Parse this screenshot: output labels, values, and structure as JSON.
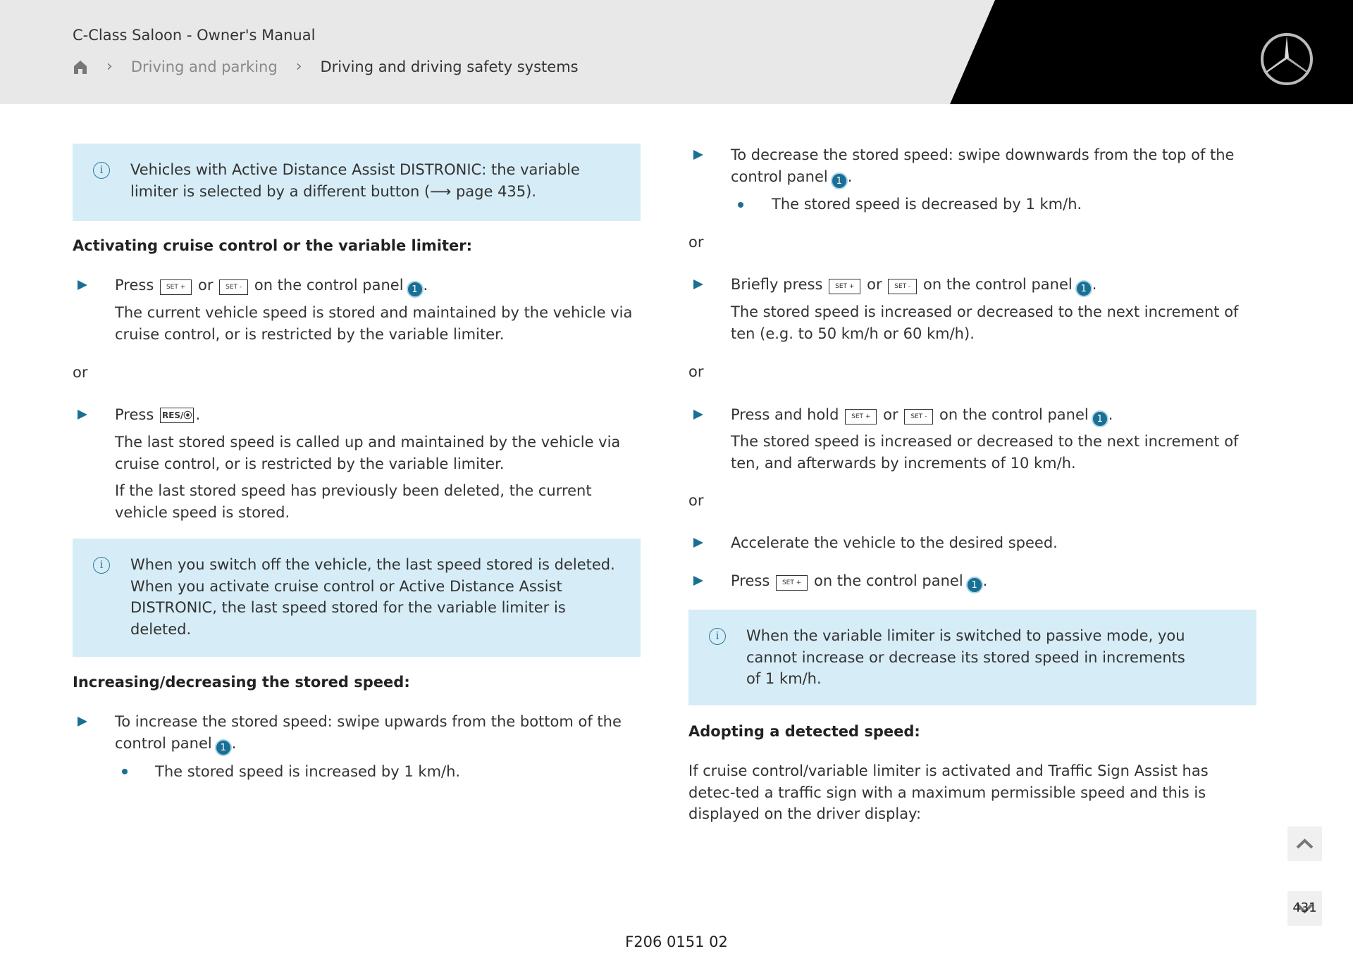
{
  "header": {
    "title": "C-Class Saloon - Owner's Manual",
    "breadcrumb": [
      "Driving and parking",
      "Driving and driving safety systems"
    ],
    "home_icon": "home-icon",
    "logo": "Mercedes-Benz star"
  },
  "left": {
    "info1": "Vehicles with Active Distance Assist DISTRONIC: the variable limiter is selected by a different button (⟶ page 435).",
    "heading1": "Activating cruise control or the variable limiter:",
    "step1": {
      "press": "Press",
      "or": "or",
      "suffix": "on the control panel",
      "result": "The current vehicle speed is stored and maintained by the vehicle via cruise control, or is restricted by the variable limiter."
    },
    "or1": "or",
    "step2": {
      "press": "Press",
      "key": "RES/⦿",
      "result1": "The last stored speed is called up and maintained by the vehicle via cruise control, or is restricted by the variable limiter.",
      "result2": "If the last stored speed has previously been deleted, the current vehicle speed is stored."
    },
    "info2": "When you switch off the vehicle, the last speed stored is deleted. When you activate cruise control or Active Distance Assist DISTRONIC, the last speed stored for the variable limiter is deleted.",
    "heading2": "Increasing/decreasing the stored speed:",
    "step3": {
      "text": "To increase the stored speed: swipe upwards from the bottom of the control panel",
      "sub": "The stored speed is increased by 1 km/h."
    }
  },
  "keys": {
    "set_plus": "SET +",
    "set_minus": "SET -",
    "num": "1"
  },
  "right": {
    "step1": {
      "text": "To decrease the stored speed: swipe downwards from the top of the control panel",
      "sub": "The stored speed is decreased by 1 km/h."
    },
    "or1": "or",
    "step2": {
      "press": "Briefly press",
      "or": "or",
      "suffix": "on the control panel",
      "result": "The stored speed is increased or decreased to the next increment of ten (e.g. to 50 km/h or 60 km/h)."
    },
    "or2": "or",
    "step3": {
      "press": "Press and hold",
      "or": "or",
      "suffix": "on the control panel",
      "result": "The stored speed is increased or decreased to the next increment of ten, and afterwards by increments of 10 km/h."
    },
    "or3": "or",
    "step4": "Accelerate the vehicle to the desired speed.",
    "step5": {
      "press": "Press",
      "suffix": "on the control panel"
    },
    "info": "When the variable limiter is switched to passive mode, you cannot increase or decrease its stored speed in increments of 1 km/h.",
    "heading": "Adopting a detected speed:",
    "para": "If cruise control/variable limiter is activated and Traffic Sign Assist has detec-ted a traffic sign with a maximum permissible speed and this is displayed on the driver display:"
  },
  "footer": {
    "code": "F206 0151 02",
    "page": "431"
  },
  "colors": {
    "accent": "#1a6f95",
    "info_bg": "#d6edf7",
    "header_bg": "#e8e8e8"
  }
}
